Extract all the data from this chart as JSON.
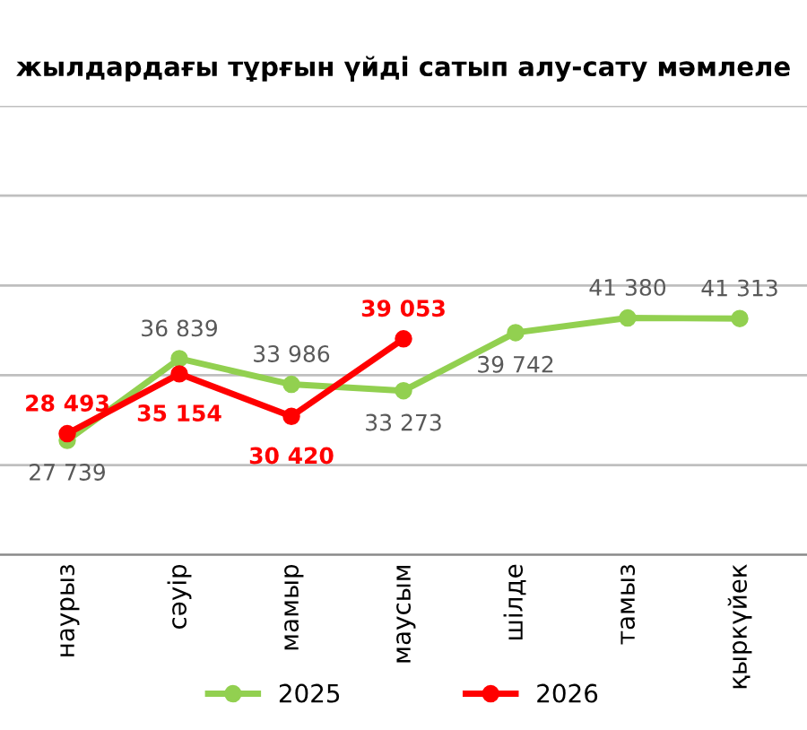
{
  "chart_data": {
    "type": "line",
    "title": "жылдардағы тұрғын үйді сатып алу-сату мәмлеле",
    "categories": [
      "наурыз",
      "сәуір",
      "мамыр",
      "маусым",
      "шілде",
      "тамыз",
      "қыркүйек"
    ],
    "series": [
      {
        "name": "2025",
        "color": "#92d050",
        "values": [
          27739,
          36839,
          33986,
          33273,
          39742,
          41380,
          41313
        ]
      },
      {
        "name": "2026",
        "color": "#ff0000",
        "values": [
          28493,
          35154,
          30420,
          39053,
          null,
          null,
          null
        ]
      }
    ],
    "ylim": [
      15000,
      65000
    ],
    "yticks": [
      {
        "value": 15000,
        "label": null
      },
      {
        "value": 25000,
        "label": null
      },
      {
        "value": 35000,
        "label": null
      },
      {
        "value": 45000,
        "label": null
      },
      {
        "value": 55000,
        "label": null
      },
      {
        "value": 65000,
        "label": null
      }
    ],
    "tick_labels": "x",
    "grid": "y",
    "legend": "bottom",
    "marker": "circle",
    "line_style": "solid",
    "data_labels": true
  }
}
